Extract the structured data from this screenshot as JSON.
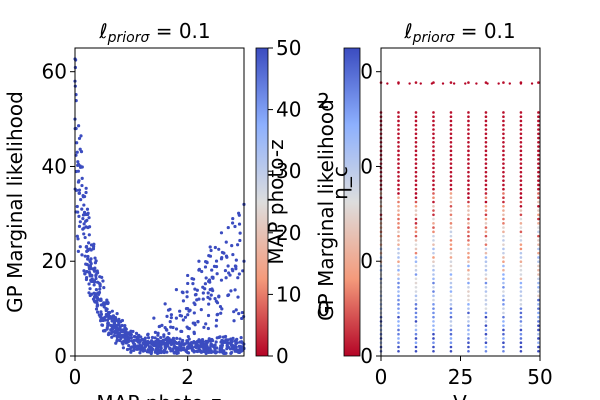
{
  "chart_data": [
    {
      "type": "scatter",
      "title": "ℓ_{priorσ} = 0.1",
      "title_main": "ℓ",
      "title_sub": "priorσ",
      "title_rest": " = 0.1",
      "xlabel": "MAP photo-z",
      "ylabel": "GP Marginal likelihood",
      "xlim": [
        0,
        3
      ],
      "ylim": [
        0,
        65
      ],
      "xticks": [
        "0",
        "2"
      ],
      "yticks": [
        "0",
        "20",
        "40",
        "60"
      ],
      "marker_color": "#3b4cc0",
      "series": [
        {
          "points": [
            [
              0.0,
              58
            ],
            [
              0.0,
              50
            ],
            [
              0.02,
              48
            ],
            [
              0.03,
              45
            ],
            [
              0.04,
              43
            ],
            [
              0.05,
              41
            ],
            [
              0.06,
              39
            ],
            [
              0.07,
              37
            ],
            [
              0.08,
              35
            ],
            [
              0.1,
              33
            ],
            [
              0.12,
              31
            ],
            [
              0.14,
              29
            ],
            [
              0.16,
              27
            ],
            [
              0.18,
              25
            ],
            [
              0.2,
              23
            ],
            [
              0.23,
              21
            ],
            [
              0.26,
              19
            ],
            [
              0.3,
              17
            ],
            [
              0.34,
              15
            ],
            [
              0.38,
              14
            ],
            [
              0.42,
              13
            ],
            [
              0.46,
              12
            ],
            [
              0.5,
              11
            ],
            [
              0.55,
              10
            ],
            [
              0.6,
              9
            ],
            [
              0.65,
              8
            ],
            [
              0.7,
              7
            ],
            [
              0.75,
              6.5
            ],
            [
              0.8,
              6
            ],
            [
              0.85,
              5.5
            ],
            [
              0.9,
              5
            ],
            [
              1.0,
              4.5
            ],
            [
              1.1,
              4
            ],
            [
              1.2,
              3.5
            ],
            [
              1.3,
              3
            ],
            [
              1.4,
              2.5
            ],
            [
              1.5,
              2.2
            ],
            [
              1.6,
              2
            ],
            [
              1.8,
              1.8
            ],
            [
              2.0,
              1.7
            ],
            [
              2.2,
              1.6
            ],
            [
              2.4,
              1.6
            ],
            [
              2.6,
              1.6
            ],
            [
              2.8,
              1.6
            ],
            [
              3.0,
              1.6
            ],
            [
              1.4,
              8
            ],
            [
              1.6,
              11
            ],
            [
              1.8,
              14
            ],
            [
              2.0,
              17
            ],
            [
              2.2,
              20
            ],
            [
              2.4,
              23
            ],
            [
              2.6,
              26
            ],
            [
              2.8,
              29
            ],
            [
              3.0,
              32
            ],
            [
              1.6,
              6
            ],
            [
              1.8,
              8
            ],
            [
              2.0,
              10
            ],
            [
              2.2,
              12
            ],
            [
              2.4,
              14
            ],
            [
              2.6,
              16
            ],
            [
              2.8,
              18
            ],
            [
              3.0,
              20
            ]
          ]
        }
      ]
    },
    {
      "type": "scatter",
      "title": "ℓ_{priorσ} = 0.1",
      "title_main": "ℓ",
      "title_sub": "priorσ",
      "title_rest": " = 0.1",
      "xlabel": "V",
      "ylabel": "GP Marginal likelihood",
      "xlim": [
        0,
        50
      ],
      "ylim": [
        0,
        65
      ],
      "xticks": [
        "0",
        "25",
        "50"
      ],
      "yticks": [
        "0",
        "20",
        "40",
        "60"
      ],
      "x_columns": [
        0,
        5.5,
        11,
        16.5,
        22,
        27.5,
        33,
        38.5,
        44,
        49.5
      ],
      "y_range": [
        1,
        58
      ],
      "color_low": "#b40426",
      "color_high": "#3b4cc0"
    }
  ],
  "colorbar": {
    "label": "MAP photo-z",
    "range": [
      0,
      50
    ],
    "ticks": [
      "0",
      "10",
      "20",
      "30",
      "40",
      "50"
    ],
    "cmap": "coolwarm",
    "color_low": "#b40426",
    "color_mid": "#dddddd",
    "color_high": "#3b4cc0"
  },
  "overlay": {
    "axis_label": "η_c",
    "ticks": [
      "0",
      "2"
    ]
  }
}
